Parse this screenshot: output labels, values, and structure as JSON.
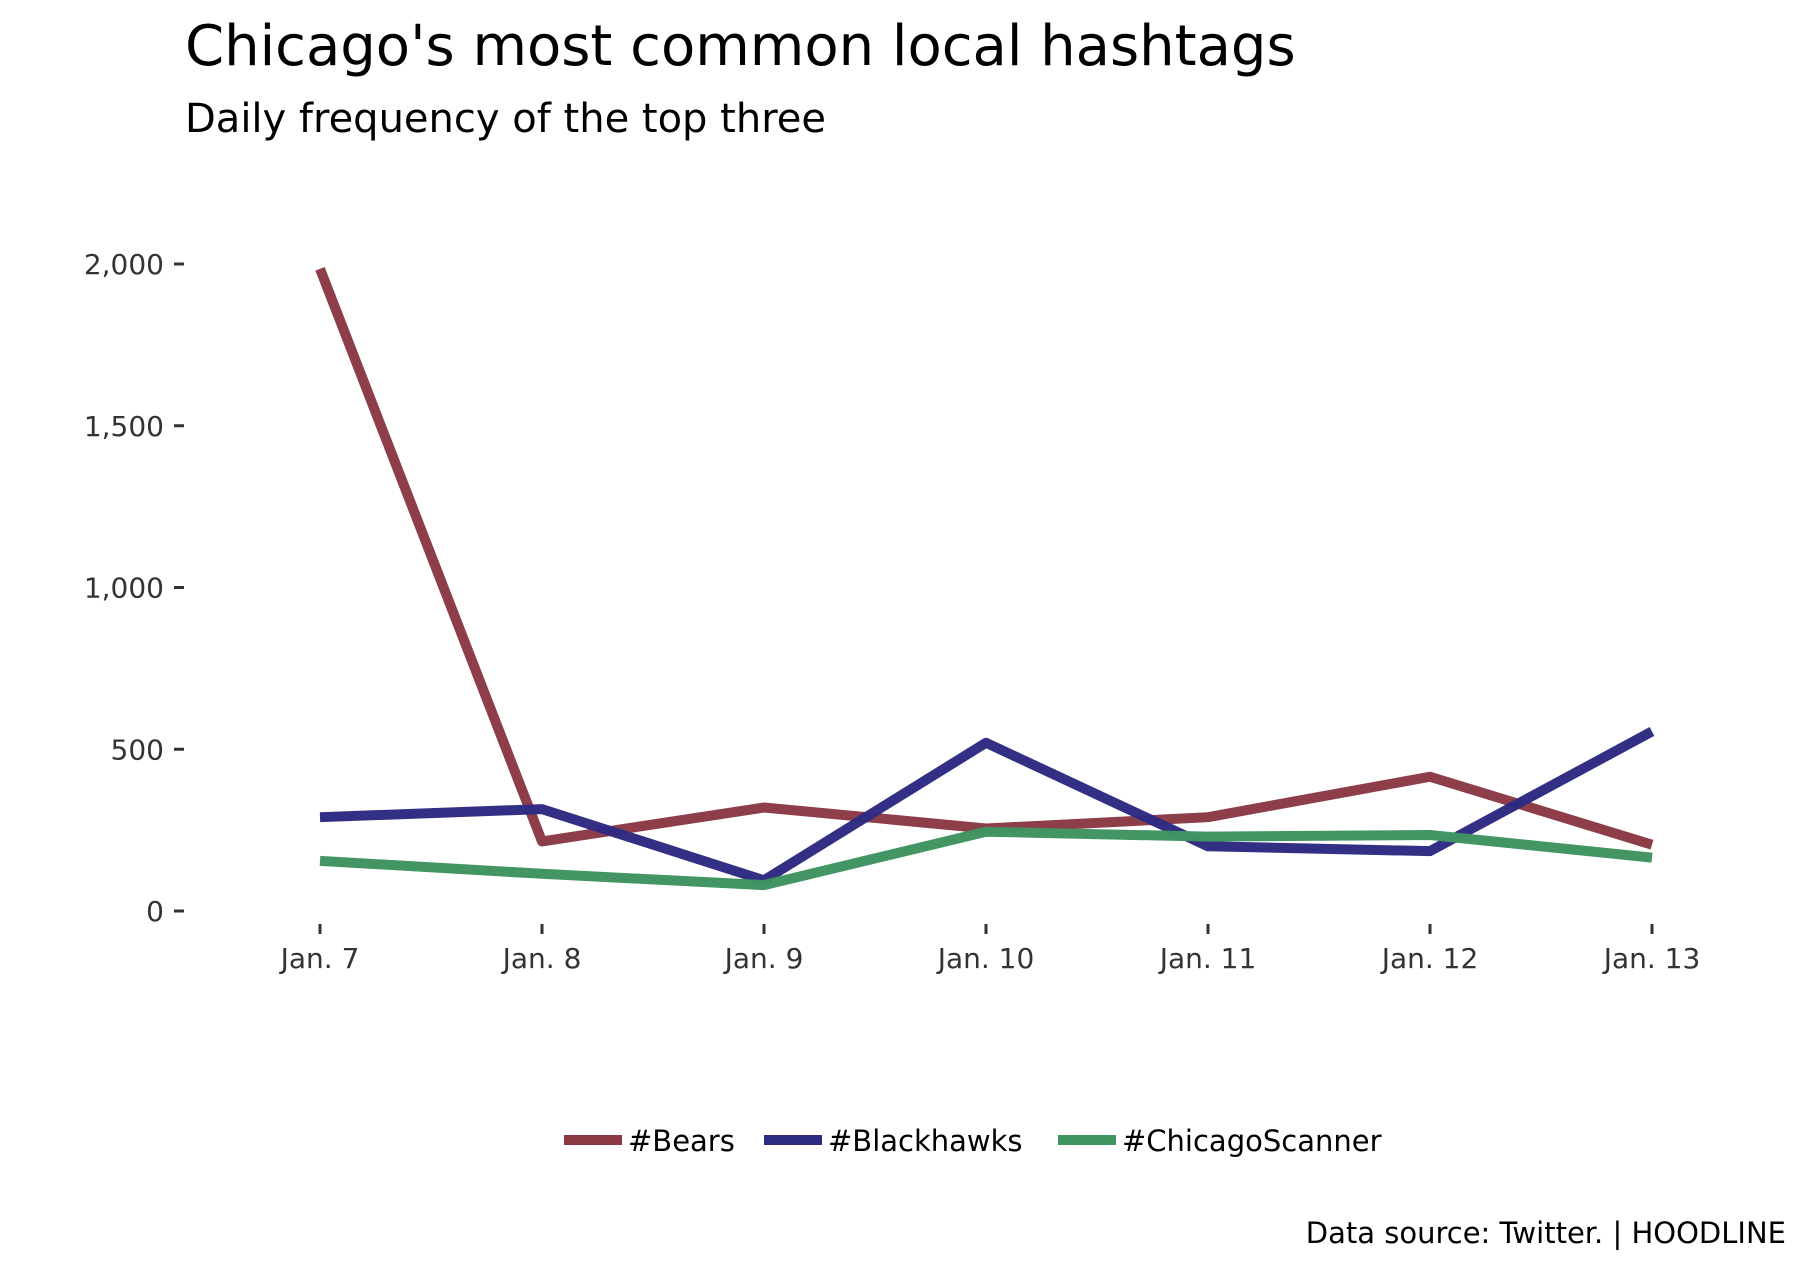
{
  "chart_data": {
    "type": "line",
    "title": "Chicago's most common local hashtags",
    "subtitle": "Daily frequency of the top three",
    "categories": [
      "Jan. 7",
      "Jan. 8",
      "Jan. 9",
      "Jan. 10",
      "Jan. 11",
      "Jan. 12",
      "Jan. 13"
    ],
    "yticks": [
      0,
      500,
      1000,
      1500,
      2000
    ],
    "ytick_labels": [
      "0",
      "500",
      "1,000",
      "1,500",
      "2,000"
    ],
    "ylim": [
      0,
      2000
    ],
    "grid": false,
    "legend_position": "bottom",
    "series": [
      {
        "name": "#Bears",
        "color": "#8b3a44",
        "values": [
          1985,
          215,
          320,
          255,
          290,
          415,
          205
        ]
      },
      {
        "name": "#Blackhawks",
        "color": "#2e2b82",
        "values": [
          290,
          315,
          95,
          520,
          200,
          185,
          555
        ]
      },
      {
        "name": "#ChicagoScanner",
        "color": "#3f9460",
        "values": [
          155,
          115,
          80,
          245,
          230,
          235,
          165
        ]
      }
    ],
    "caption": "Data source: Twitter. | HOODLINE"
  }
}
